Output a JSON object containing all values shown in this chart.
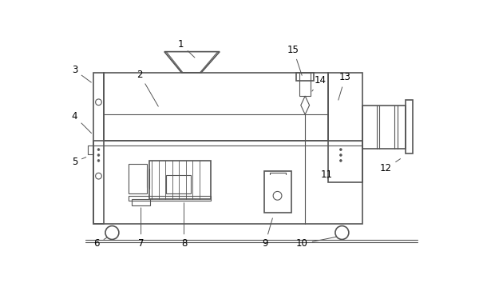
{
  "background_color": "#ffffff",
  "line_color": "#555555",
  "label_color": "#000000",
  "lw_main": 1.2,
  "lw_thin": 0.8
}
